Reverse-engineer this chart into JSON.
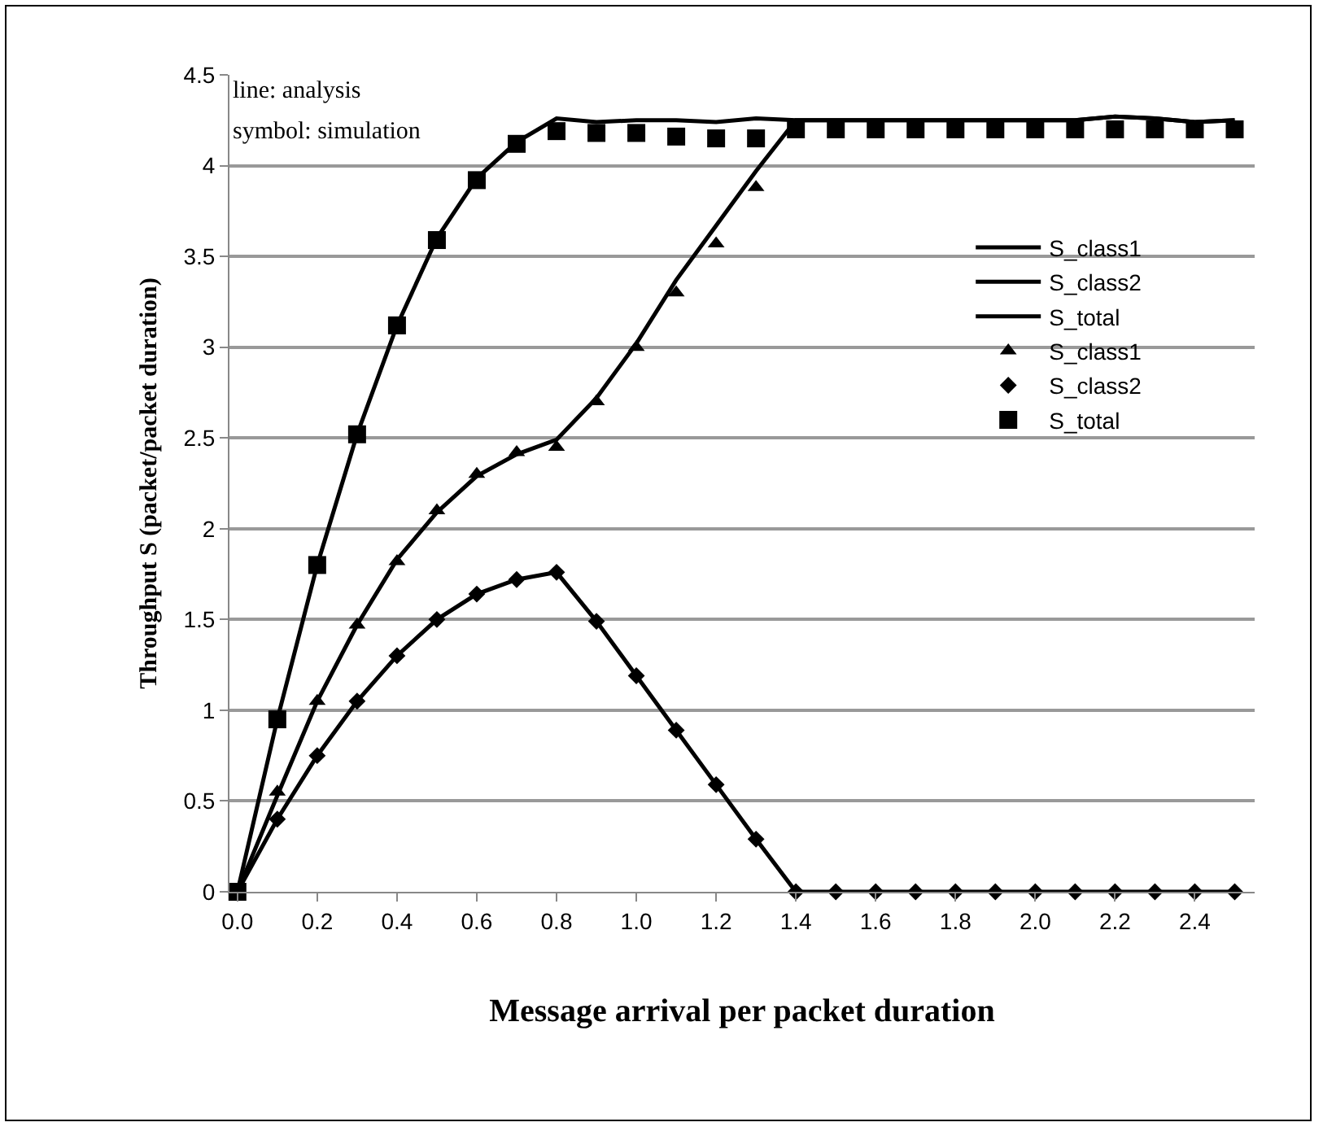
{
  "chart_data": {
    "type": "line",
    "xlabel": "Message arrival per packet duration",
    "ylabel": "Throughput S (packet/packet duration)",
    "annotations": [
      "line: analysis",
      "symbol: simulation"
    ],
    "x": [
      0,
      0.1,
      0.2,
      0.3,
      0.4,
      0.5,
      0.6,
      0.7,
      0.8,
      0.9,
      1.0,
      1.1,
      1.2,
      1.3,
      1.4,
      1.5,
      1.6,
      1.7,
      1.8,
      1.9,
      2.0,
      2.1,
      2.2,
      2.3,
      2.4,
      2.5
    ],
    "xlim": [
      -0.02,
      2.55
    ],
    "xticks": [
      {
        "value": 0,
        "label": "0.0"
      },
      {
        "value": 0.2,
        "label": "0.2"
      },
      {
        "value": 0.4,
        "label": "0.4"
      },
      {
        "value": 0.6,
        "label": "0.6"
      },
      {
        "value": 0.8,
        "label": "0.8"
      },
      {
        "value": 1.0,
        "label": "1.0"
      },
      {
        "value": 1.2,
        "label": "1.2"
      },
      {
        "value": 1.4,
        "label": "1.4"
      },
      {
        "value": 1.6,
        "label": "1.6"
      },
      {
        "value": 1.8,
        "label": "1.8"
      },
      {
        "value": 2.0,
        "label": "2.0"
      },
      {
        "value": 2.2,
        "label": "2.2"
      },
      {
        "value": 2.4,
        "label": "2.4"
      }
    ],
    "ylim": [
      0,
      4.5
    ],
    "yticks": [
      0,
      0.5,
      1,
      1.5,
      2,
      2.5,
      3,
      3.5,
      4,
      4.5
    ],
    "grid": "y",
    "legend": "right",
    "line_style": "solid",
    "series": [
      {
        "name": "S_class1",
        "color": "#000000",
        "marker": "none",
        "values": [
          0,
          0.53,
          1.05,
          1.47,
          1.83,
          2.09,
          2.29,
          2.41,
          2.49,
          2.72,
          3.02,
          3.37,
          3.67,
          3.97,
          4.25,
          4.25,
          4.25,
          4.25,
          4.25,
          4.25,
          4.25,
          4.25,
          4.27,
          4.26,
          4.24,
          4.25
        ]
      },
      {
        "name": "S_class2",
        "color": "#000000",
        "marker": "none",
        "values": [
          0,
          0.4,
          0.75,
          1.05,
          1.3,
          1.5,
          1.64,
          1.72,
          1.76,
          1.49,
          1.19,
          0.89,
          0.59,
          0.29,
          0,
          0,
          0,
          0,
          0,
          0,
          0,
          0,
          0,
          0,
          0,
          0
        ]
      },
      {
        "name": "S_total",
        "color": "#000000",
        "marker": "none",
        "values": [
          0,
          0.95,
          1.8,
          2.52,
          3.12,
          3.6,
          3.93,
          4.13,
          4.26,
          4.24,
          4.25,
          4.25,
          4.24,
          4.26,
          4.25,
          4.25,
          4.25,
          4.25,
          4.25,
          4.25,
          4.25,
          4.25,
          4.27,
          4.26,
          4.24,
          4.25
        ]
      },
      {
        "name": "S_class1",
        "color": "#000000",
        "type": "scatter",
        "marker": "triangle",
        "values": [
          null,
          0.55,
          1.05,
          1.47,
          1.82,
          2.1,
          2.3,
          2.42,
          2.45,
          2.7,
          3.0,
          3.3,
          3.57,
          3.88,
          null,
          null,
          null,
          null,
          null,
          null,
          null,
          null,
          null,
          null,
          null,
          null
        ]
      },
      {
        "name": "S_class2",
        "color": "#000000",
        "type": "scatter",
        "marker": "diamond",
        "values": [
          null,
          0.4,
          0.75,
          1.05,
          1.3,
          1.5,
          1.64,
          1.72,
          1.76,
          1.49,
          1.19,
          0.89,
          0.59,
          0.29,
          0,
          0,
          0,
          0,
          0,
          0,
          0,
          0,
          0,
          0,
          0,
          0
        ]
      },
      {
        "name": "S_total",
        "color": "#000000",
        "type": "scatter",
        "marker": "square",
        "values": [
          0,
          0.95,
          1.8,
          2.52,
          3.12,
          3.59,
          3.92,
          4.12,
          4.19,
          4.18,
          4.18,
          4.16,
          4.15,
          4.15,
          4.2,
          4.2,
          4.2,
          4.2,
          4.2,
          4.2,
          4.2,
          4.2,
          4.2,
          4.2,
          4.2,
          4.2
        ]
      }
    ]
  }
}
